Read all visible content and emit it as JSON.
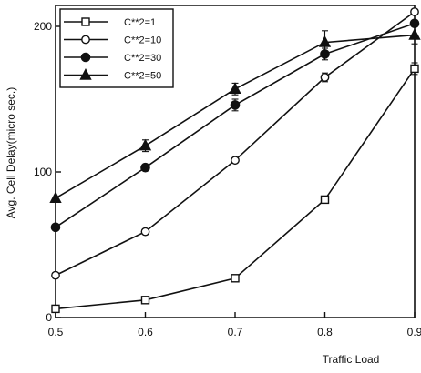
{
  "chart_data": {
    "type": "line",
    "title": "",
    "xlabel": "Traffic Load",
    "ylabel": "Avg. Cell Delay(micro sec.)",
    "x": [
      0.5,
      0.6,
      0.7,
      0.8,
      0.9
    ],
    "xticks": [
      0.5,
      0.6,
      0.7,
      0.8,
      0.9
    ],
    "xtick_labels": [
      "0.5",
      "0.6",
      "0.7",
      "0.8",
      "0.9"
    ],
    "yticks": [
      0,
      100,
      200
    ],
    "ytick_labels": [
      "0",
      "100",
      "200"
    ],
    "xlim": [
      0.5,
      0.9
    ],
    "ylim": [
      0,
      210
    ],
    "grid": false,
    "legend_position": "top-left",
    "series": [
      {
        "name": "C**2=1",
        "marker": "open-square",
        "values": [
          6,
          12,
          27,
          81,
          171
        ]
      },
      {
        "name": "C**2=10",
        "marker": "open-circle",
        "values": [
          29,
          59,
          108,
          165,
          210
        ]
      },
      {
        "name": "C**2=30",
        "marker": "filled-circle",
        "values": [
          62,
          103,
          146,
          181,
          202
        ]
      },
      {
        "name": "C**2=50",
        "marker": "filled-triangle",
        "values": [
          82,
          118,
          157,
          189,
          194
        ]
      }
    ],
    "error_bars": [
      {
        "series": 0,
        "x": 0.9,
        "err": 4
      },
      {
        "series": 1,
        "x": 0.8,
        "err": 3
      },
      {
        "series": 2,
        "x": 0.7,
        "err": 4
      },
      {
        "series": 2,
        "x": 0.8,
        "err": 4
      },
      {
        "series": 3,
        "x": 0.6,
        "err": 4
      },
      {
        "series": 3,
        "x": 0.7,
        "err": 4
      },
      {
        "series": 3,
        "x": 0.8,
        "err": 8
      },
      {
        "series": 3,
        "x": 0.9,
        "err": 6
      }
    ]
  }
}
